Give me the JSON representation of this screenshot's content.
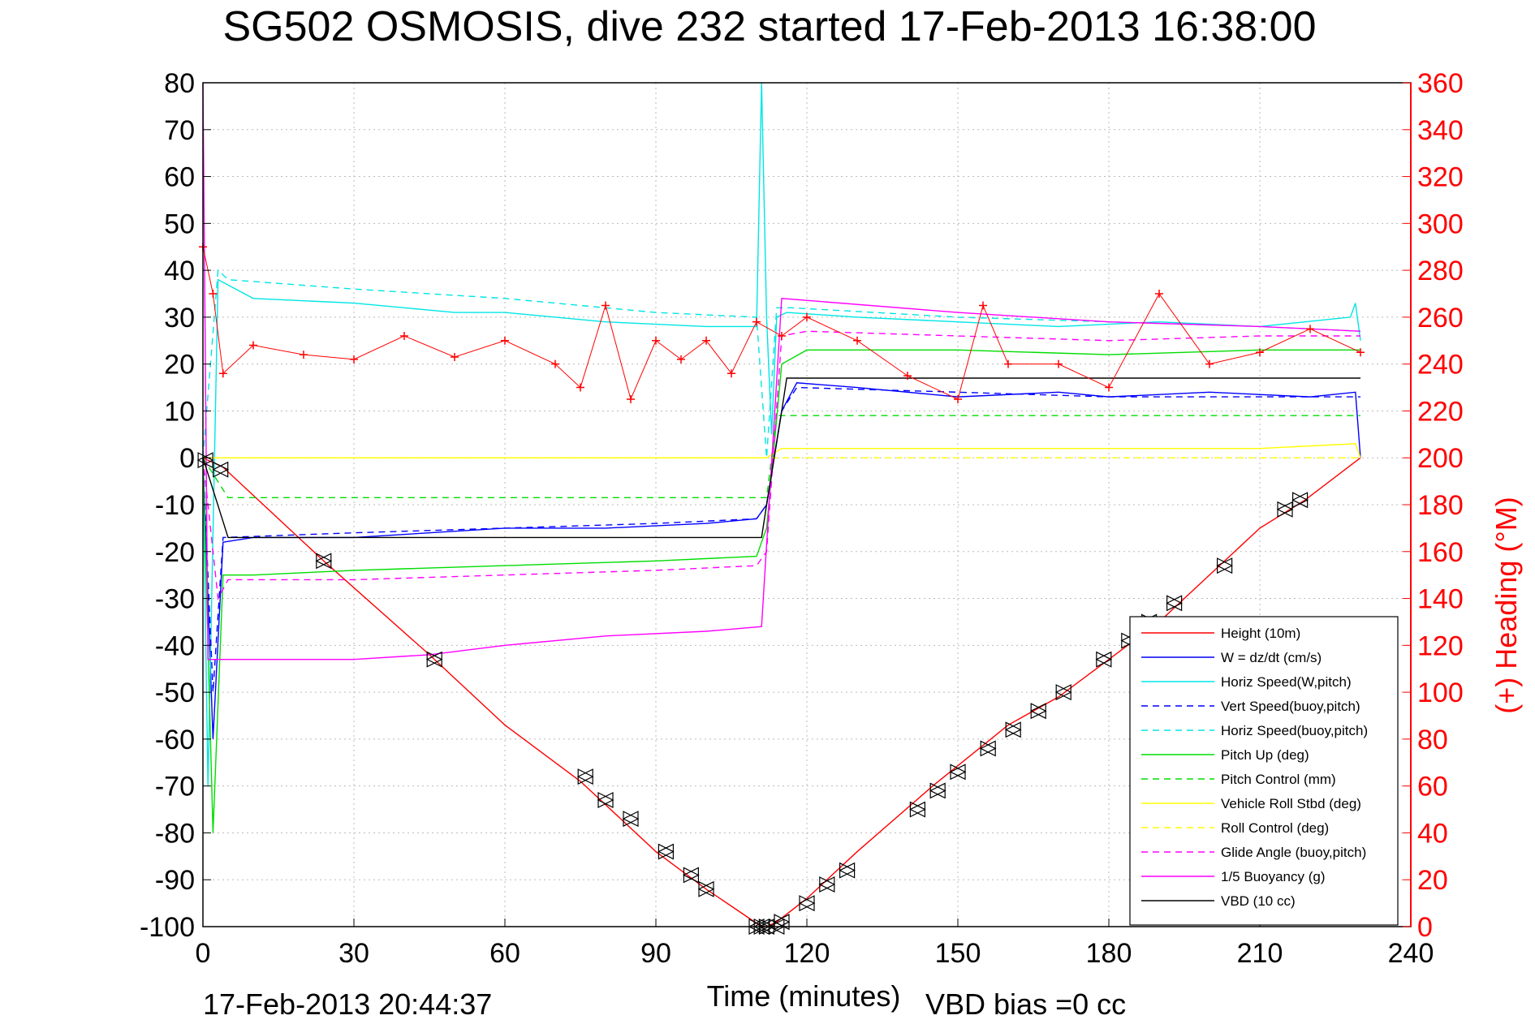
{
  "chart_data": {
    "type": "line",
    "title": "SG502 OSMOSIS, dive 232 started 17-Feb-2013 16:38:00",
    "xlabel": "Time (minutes)",
    "ylabel": "",
    "y2label": "(+) Heading (°M)",
    "footer_left": "17-Feb-2013 20:44:37",
    "footer_right": "VBD bias =0 cc",
    "xlim": [
      0,
      240
    ],
    "ylim": [
      -100,
      80
    ],
    "y2lim": [
      0,
      360
    ],
    "xticks": [
      "0",
      "30",
      "60",
      "90",
      "120",
      "150",
      "180",
      "210",
      "240"
    ],
    "yticks": [
      "80",
      "70",
      "60",
      "50",
      "40",
      "30",
      "20",
      "10",
      "0",
      "-10",
      "-20",
      "-30",
      "-40",
      "-50",
      "-60",
      "-70",
      "-80",
      "-90",
      "-100"
    ],
    "y2ticks": [
      "360",
      "340",
      "320",
      "300",
      "280",
      "260",
      "240",
      "220",
      "200",
      "180",
      "160",
      "140",
      "120",
      "100",
      "80",
      "60",
      "40",
      "20",
      "0"
    ],
    "grid": true,
    "legend_position": "bottom-right",
    "colors": {
      "axis": "#000000",
      "heading_axis": "#ff0000",
      "grid": "#bbbbbb"
    },
    "series": [
      {
        "name": "Height (10m)",
        "color": "#ff0000",
        "dash": false,
        "x": [
          0,
          4,
          24,
          45,
          60,
          75,
          90,
          100,
          111,
          112,
          114,
          120,
          130,
          145,
          160,
          170,
          180,
          190,
          200,
          210,
          219,
          230
        ],
        "y": [
          0,
          -2,
          -22,
          -42,
          -57,
          -69,
          -84,
          -92,
          -100,
          -100,
          -99,
          -94,
          -84,
          -70,
          -57,
          -51,
          -43,
          -35,
          -25,
          -15,
          -9,
          0
        ]
      },
      {
        "name": "W = dz/dt (cm/s)",
        "color": "#0000ff",
        "dash": false,
        "x": [
          0,
          2,
          4,
          10,
          30,
          60,
          80,
          100,
          110,
          112,
          115,
          118,
          130,
          150,
          170,
          180,
          200,
          220,
          229,
          230
        ],
        "y": [
          0,
          -60,
          -18,
          -17,
          -17,
          -15,
          -15,
          -14,
          -13,
          -10,
          10,
          16,
          15,
          13,
          14,
          13,
          14,
          13,
          14,
          0
        ]
      },
      {
        "name": "Horiz Speed(W,pitch)",
        "color": "#00e5e5",
        "dash": false,
        "x": [
          0,
          1,
          3,
          10,
          30,
          50,
          60,
          80,
          100,
          110,
          111,
          112,
          113,
          114,
          116,
          130,
          150,
          170,
          190,
          210,
          228,
          229,
          230
        ],
        "y": [
          0,
          -70,
          38,
          34,
          33,
          31,
          31,
          29,
          28,
          28,
          80,
          30,
          5,
          30,
          31,
          30,
          29,
          28,
          29,
          28,
          30,
          33,
          25
        ]
      },
      {
        "name": "Vert Speed(buoy,pitch)",
        "color": "#0000ff",
        "dash": true,
        "x": [
          0,
          2,
          4,
          30,
          60,
          90,
          110,
          112,
          115,
          118,
          150,
          180,
          210,
          230
        ],
        "y": [
          0,
          -50,
          -17,
          -16,
          -15,
          -14,
          -13,
          -10,
          10,
          15,
          14,
          13,
          13,
          13
        ]
      },
      {
        "name": "Horiz Speed(buoy,pitch)",
        "color": "#00e5e5",
        "dash": true,
        "x": [
          0,
          3,
          5,
          30,
          60,
          90,
          110,
          112,
          114,
          117,
          150,
          180,
          210,
          230
        ],
        "y": [
          0,
          40,
          38,
          36,
          34,
          31,
          30,
          0,
          32,
          32,
          30,
          29,
          28,
          27
        ]
      },
      {
        "name": "Pitch Up (deg)",
        "color": "#00dd00",
        "dash": false,
        "x": [
          0,
          2,
          4,
          10,
          30,
          60,
          90,
          110,
          112,
          115,
          120,
          150,
          180,
          210,
          230
        ],
        "y": [
          0,
          -80,
          -25,
          -25,
          -24,
          -23,
          -22,
          -21,
          -15,
          20,
          23,
          23,
          22,
          23,
          23
        ]
      },
      {
        "name": "Pitch Control (mm)",
        "color": "#00dd00",
        "dash": true,
        "x": [
          0,
          5,
          110,
          112,
          114,
          230
        ],
        "y": [
          0,
          -8.5,
          -8.5,
          -8.5,
          9,
          9
        ]
      },
      {
        "name": "Vehicle Roll Stbd (deg)",
        "color": "#ffff00",
        "dash": false,
        "x": [
          0,
          5,
          60,
          110,
          112,
          115,
          120,
          150,
          180,
          210,
          229,
          230
        ],
        "y": [
          0,
          0,
          0,
          0,
          0,
          2,
          2,
          2,
          2,
          2,
          3,
          0
        ]
      },
      {
        "name": "Roll Control (deg)",
        "color": "#ffff00",
        "dash": true,
        "x": [
          0,
          5,
          110,
          112,
          114,
          230
        ],
        "y": [
          0,
          0,
          0,
          0,
          0,
          0
        ]
      },
      {
        "name": "Glide Angle (buoy,pitch)",
        "color": "#ff00ff",
        "dash": true,
        "x": [
          0,
          3,
          5,
          30,
          60,
          90,
          110,
          112,
          115,
          120,
          150,
          180,
          210,
          230
        ],
        "y": [
          0,
          -30,
          -26,
          -26,
          -25,
          -24,
          -23,
          -20,
          26,
          27,
          26,
          25,
          26,
          26
        ]
      },
      {
        "name": "1/5 Buoyancy (g)",
        "color": "#ff00ff",
        "dash": false,
        "x": [
          0,
          1,
          4,
          30,
          45,
          60,
          80,
          100,
          111,
          115,
          150,
          180,
          210,
          230
        ],
        "y": [
          80,
          -43,
          -43,
          -43,
          -42,
          -40,
          -38,
          -37,
          -36,
          34,
          31,
          29,
          28,
          27
        ]
      },
      {
        "name": "VBD (10 cc)",
        "color": "#000000",
        "dash": false,
        "x": [
          0,
          5,
          30,
          60,
          90,
          111,
          112,
          115,
          116,
          130,
          150,
          180,
          210,
          230
        ],
        "y": [
          0,
          -17,
          -17,
          -17,
          -17,
          -17,
          -10,
          10,
          17,
          17,
          17,
          17,
          17,
          17
        ]
      }
    ],
    "heading": {
      "name": "Heading",
      "axis": "right",
      "color": "#ff0000",
      "marker": "+",
      "x": [
        0,
        2,
        4,
        10,
        20,
        30,
        40,
        50,
        60,
        70,
        75,
        80,
        85,
        90,
        95,
        100,
        105,
        110,
        115,
        120,
        130,
        140,
        150,
        155,
        160,
        170,
        180,
        190,
        200,
        210,
        220,
        230
      ],
      "y": [
        290,
        270,
        236,
        248,
        244,
        242,
        252,
        243,
        250,
        240,
        230,
        265,
        225,
        250,
        242,
        250,
        236,
        258,
        252,
        260,
        250,
        235,
        225,
        265,
        240,
        240,
        230,
        270,
        240,
        245,
        255,
        245
      ]
    },
    "markers": {
      "name": "Height markers",
      "shape": "triangle-diamond",
      "x": [
        0.5,
        3.5,
        24,
        46,
        76,
        80,
        85,
        92,
        97,
        100,
        110,
        111,
        112,
        114,
        115,
        120,
        124,
        128,
        142,
        146,
        150,
        156,
        161,
        166,
        171,
        179,
        184,
        188,
        193,
        203,
        215,
        218
      ],
      "y": [
        -0.5,
        -2.5,
        -22,
        -43,
        -68,
        -73,
        -77,
        -84,
        -89,
        -92,
        -100,
        -100,
        -100,
        -100,
        -99,
        -95,
        -91,
        -88,
        -75,
        -71,
        -67,
        -62,
        -58,
        -54,
        -50,
        -43,
        -39,
        -35,
        -31,
        -23,
        -11,
        -9
      ]
    }
  }
}
